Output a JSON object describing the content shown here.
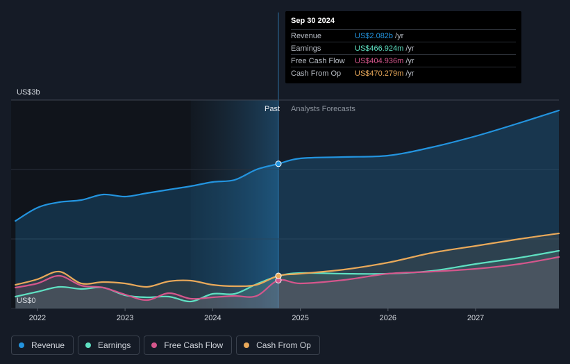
{
  "chart_data": {
    "type": "line",
    "y_axis": {
      "top_label": "US$3b",
      "bottom_label": "US$0",
      "ylim": [
        0,
        3
      ]
    },
    "x_axis": {
      "ticks": [
        "2022",
        "2023",
        "2024",
        "2025",
        "2026",
        "2027"
      ],
      "xlim": [
        2021.7,
        2027.95
      ]
    },
    "divider": {
      "x": 2024.75,
      "past_label": "Past",
      "forecast_label": "Analysts Forecasts"
    },
    "grid": true,
    "legend_position": "bottom-left",
    "series": [
      {
        "name": "Revenue",
        "color": "#2394df",
        "key": "revenue",
        "x": [
          2021.75,
          2022.0,
          2022.25,
          2022.5,
          2022.75,
          2023.0,
          2023.25,
          2023.5,
          2023.75,
          2024.0,
          2024.25,
          2024.5,
          2024.75,
          2025.0,
          2025.5,
          2026.0,
          2026.5,
          2027.0,
          2027.5,
          2027.95
        ],
        "y": [
          1.26,
          1.45,
          1.53,
          1.56,
          1.64,
          1.61,
          1.66,
          1.71,
          1.76,
          1.82,
          1.85,
          2.0,
          2.082,
          2.16,
          2.18,
          2.2,
          2.32,
          2.48,
          2.67,
          2.85
        ]
      },
      {
        "name": "Earnings",
        "color": "#5fe0c2",
        "key": "earnings",
        "x": [
          2021.75,
          2022.0,
          2022.25,
          2022.5,
          2022.75,
          2023.0,
          2023.25,
          2023.5,
          2023.75,
          2024.0,
          2024.25,
          2024.5,
          2024.75,
          2025.0,
          2025.5,
          2026.0,
          2026.5,
          2027.0,
          2027.5,
          2027.95
        ],
        "y": [
          0.17,
          0.24,
          0.31,
          0.28,
          0.3,
          0.19,
          0.16,
          0.17,
          0.1,
          0.21,
          0.21,
          0.35,
          0.467,
          0.51,
          0.5,
          0.5,
          0.54,
          0.64,
          0.73,
          0.83
        ]
      },
      {
        "name": "Free Cash Flow",
        "color": "#d5568c",
        "key": "fcf",
        "x": [
          2021.75,
          2022.0,
          2022.25,
          2022.5,
          2022.75,
          2023.0,
          2023.25,
          2023.5,
          2023.75,
          2024.0,
          2024.25,
          2024.5,
          2024.75,
          2025.0,
          2025.5,
          2026.0,
          2026.5,
          2027.0,
          2027.5,
          2027.95
        ],
        "y": [
          0.3,
          0.36,
          0.47,
          0.33,
          0.3,
          0.2,
          0.12,
          0.22,
          0.14,
          0.16,
          0.18,
          0.18,
          0.405,
          0.36,
          0.41,
          0.5,
          0.53,
          0.57,
          0.64,
          0.74
        ]
      },
      {
        "name": "Cash From Op",
        "color": "#e9a95a",
        "key": "cfo",
        "x": [
          2021.75,
          2022.0,
          2022.25,
          2022.5,
          2022.75,
          2023.0,
          2023.25,
          2023.5,
          2023.75,
          2024.0,
          2024.25,
          2024.5,
          2024.75,
          2025.0,
          2025.5,
          2026.0,
          2026.5,
          2027.0,
          2027.5,
          2027.95
        ],
        "y": [
          0.34,
          0.42,
          0.53,
          0.36,
          0.38,
          0.36,
          0.31,
          0.39,
          0.4,
          0.34,
          0.32,
          0.34,
          0.47,
          0.5,
          0.56,
          0.66,
          0.8,
          0.9,
          1.0,
          1.08
        ]
      }
    ]
  },
  "tooltip": {
    "date": "Sep 30 2024",
    "rows": [
      {
        "label": "Revenue",
        "value": "US$2.082b",
        "unit": "/yr",
        "color": "#2394df"
      },
      {
        "label": "Earnings",
        "value": "US$466.924m",
        "unit": "/yr",
        "color": "#5fe0c2"
      },
      {
        "label": "Free Cash Flow",
        "value": "US$404.936m",
        "unit": "/yr",
        "color": "#d5568c"
      },
      {
        "label": "Cash From Op",
        "value": "US$470.279m",
        "unit": "/yr",
        "color": "#e9a95a"
      }
    ]
  },
  "legend": [
    {
      "label": "Revenue",
      "color": "#2394df"
    },
    {
      "label": "Earnings",
      "color": "#5fe0c2"
    },
    {
      "label": "Free Cash Flow",
      "color": "#d5568c"
    },
    {
      "label": "Cash From Op",
      "color": "#e9a95a"
    }
  ]
}
